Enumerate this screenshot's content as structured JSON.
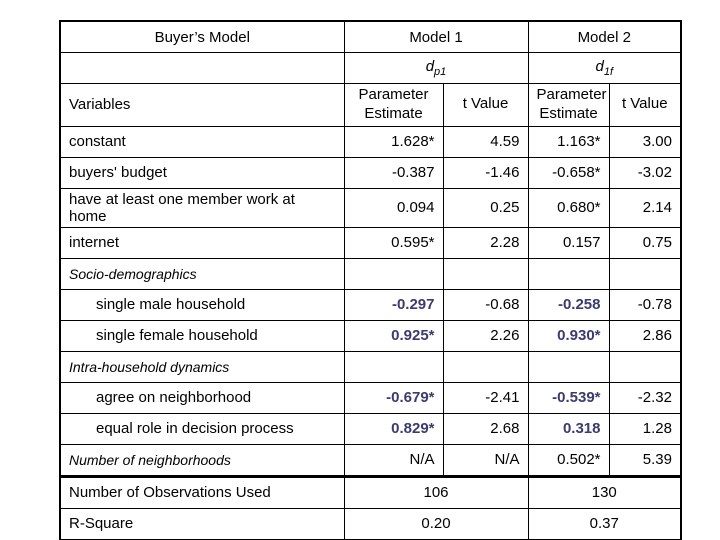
{
  "colors": {
    "highlight_value": "#3B3B6F",
    "text": "#000000",
    "border": "#000000",
    "background": "#ffffff"
  },
  "table": {
    "header": {
      "title": "Buyer’s Model",
      "model1_label": "Model 1",
      "model2_label": "Model 2",
      "model1_symbol_base": "d",
      "model1_symbol_sub": "p1",
      "model2_symbol_base": "d",
      "model2_symbol_sub": "1f",
      "variables_label": "Variables",
      "param_estimate_label": "Parameter Estimate",
      "t_value_label": "t Value"
    },
    "rows": [
      {
        "label": "constant",
        "style": "normal",
        "values": [
          "1.628*",
          "4.59",
          "1.163*",
          "3.00"
        ],
        "highlight": [
          false,
          false,
          false,
          false
        ]
      },
      {
        "label": "buyers' budget",
        "style": "normal",
        "values": [
          "-0.387",
          "-1.46",
          "-0.658*",
          "-3.02"
        ],
        "highlight": [
          false,
          false,
          false,
          false
        ]
      },
      {
        "label": "have at least one member work at home",
        "style": "normal",
        "values": [
          "0.094",
          "0.25",
          "0.680*",
          "2.14"
        ],
        "highlight": [
          false,
          false,
          false,
          false
        ]
      },
      {
        "label": "internet",
        "style": "normal",
        "values": [
          "0.595*",
          "2.28",
          "0.157",
          "0.75"
        ],
        "highlight": [
          false,
          false,
          false,
          false
        ]
      },
      {
        "label": "Socio-demographics",
        "style": "section",
        "values": [
          "",
          "",
          "",
          ""
        ],
        "highlight": [
          false,
          false,
          false,
          false
        ]
      },
      {
        "label": "single male household",
        "style": "indent",
        "values": [
          "-0.297",
          "-0.68",
          "-0.258",
          "-0.78"
        ],
        "highlight": [
          true,
          false,
          true,
          false
        ]
      },
      {
        "label": "single female household",
        "style": "indent",
        "values": [
          "0.925*",
          "2.26",
          "0.930*",
          "2.86"
        ],
        "highlight": [
          true,
          false,
          true,
          false
        ]
      },
      {
        "label": "Intra-household dynamics",
        "style": "section",
        "values": [
          "",
          "",
          "",
          ""
        ],
        "highlight": [
          false,
          false,
          false,
          false
        ]
      },
      {
        "label": "agree on neighborhood",
        "style": "indent",
        "values": [
          "-0.679*",
          "-2.41",
          "-0.539*",
          "-2.32"
        ],
        "highlight": [
          true,
          false,
          true,
          false
        ]
      },
      {
        "label": "equal role in decision process",
        "style": "indent",
        "values": [
          "0.829*",
          "2.68",
          "0.318",
          "1.28"
        ],
        "highlight": [
          true,
          false,
          true,
          false
        ]
      },
      {
        "label": "Number of neighborhoods",
        "style": "italic",
        "values": [
          "N/A",
          "N/A",
          "0.502*",
          "5.39"
        ],
        "highlight": [
          false,
          false,
          false,
          false
        ]
      }
    ],
    "footer_rows": [
      {
        "label": "Number of Observations Used",
        "model1": "106",
        "model2": "130"
      },
      {
        "label": "R-Square",
        "model1": "0.20",
        "model2": "0.37"
      }
    ]
  }
}
